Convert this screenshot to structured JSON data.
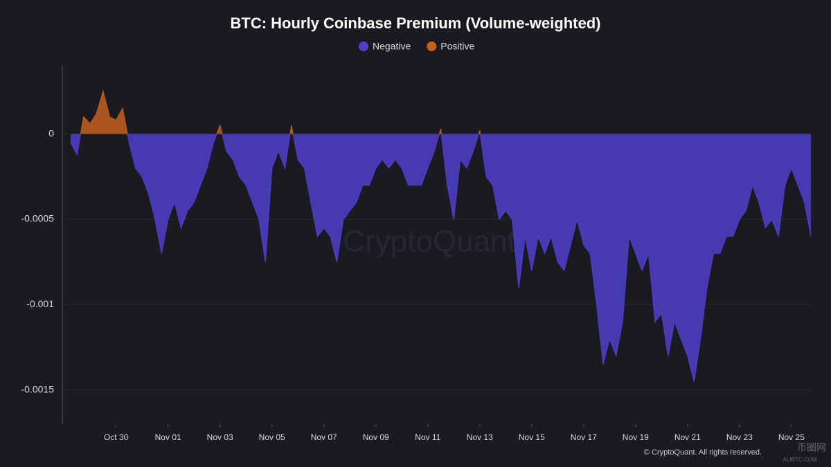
{
  "chart_data": {
    "type": "area",
    "title": "BTC: Hourly Coinbase Premium (Volume-weighted)",
    "legend": [
      {
        "name": "Negative",
        "color": "#4f3fc8"
      },
      {
        "name": "Positive",
        "color": "#c45f1c"
      }
    ],
    "watermark": "CryptoQuant",
    "copyright": "© CryptoQuant. All rights reserved.",
    "corner_logo": [
      "币圈网",
      "ALIBTC.COM"
    ],
    "xlim": [
      0.25,
      28.75
    ],
    "xticks": [
      {
        "value": 2,
        "label": "Oct 30"
      },
      {
        "value": 4,
        "label": "Nov 01"
      },
      {
        "value": 6,
        "label": "Nov 03"
      },
      {
        "value": 8,
        "label": "Nov 05"
      },
      {
        "value": 10,
        "label": "Nov 07"
      },
      {
        "value": 12,
        "label": "Nov 09"
      },
      {
        "value": 14,
        "label": "Nov 11"
      },
      {
        "value": 16,
        "label": "Nov 13"
      },
      {
        "value": 18,
        "label": "Nov 15"
      },
      {
        "value": 20,
        "label": "Nov 17"
      },
      {
        "value": 22,
        "label": "Nov 19"
      },
      {
        "value": 24,
        "label": "Nov 21"
      },
      {
        "value": 26,
        "label": "Nov 23"
      },
      {
        "value": 28,
        "label": "Nov 25"
      }
    ],
    "ylim": [
      -0.0017,
      0.0004
    ],
    "yticks": [
      0,
      -0.0005,
      -0.001,
      -0.0015
    ],
    "grid": true,
    "x": [
      0.25,
      0.5,
      0.75,
      1,
      1.25,
      1.5,
      1.75,
      2,
      2.25,
      2.5,
      2.75,
      3,
      3.25,
      3.5,
      3.75,
      4,
      4.25,
      4.5,
      4.75,
      5,
      5.25,
      5.5,
      5.75,
      6,
      6.25,
      6.5,
      6.75,
      7,
      7.25,
      7.5,
      7.75,
      8,
      8.25,
      8.5,
      8.75,
      9,
      9.25,
      9.5,
      9.75,
      10,
      10.25,
      10.5,
      10.75,
      11,
      11.25,
      11.5,
      11.75,
      12,
      12.25,
      12.5,
      12.75,
      13,
      13.25,
      13.5,
      13.75,
      14,
      14.25,
      14.5,
      14.75,
      15,
      15.25,
      15.5,
      15.75,
      16,
      16.25,
      16.5,
      16.75,
      17,
      17.25,
      17.5,
      17.75,
      18,
      18.25,
      18.5,
      18.75,
      19,
      19.25,
      19.5,
      19.75,
      20,
      20.25,
      20.5,
      20.75,
      21,
      21.25,
      21.5,
      21.75,
      22,
      22.25,
      22.5,
      22.75,
      23,
      23.25,
      23.5,
      23.75,
      24,
      24.25,
      24.5,
      24.75,
      25,
      25.25,
      25.5,
      25.75,
      26,
      26.25,
      26.5,
      26.75,
      27,
      27.25,
      27.5,
      27.75,
      28,
      28.25,
      28.5,
      28.75
    ],
    "values": [
      -5e-05,
      -0.00012,
      0.0001,
      6e-05,
      0.00012,
      0.00025,
      0.0001,
      8e-05,
      0.00015,
      -5e-05,
      -0.0002,
      -0.00025,
      -0.00035,
      -0.0005,
      -0.0007,
      -0.0005,
      -0.0004,
      -0.00055,
      -0.00045,
      -0.0004,
      -0.0003,
      -0.0002,
      -5e-05,
      5e-05,
      -0.0001,
      -0.00015,
      -0.00025,
      -0.0003,
      -0.0004,
      -0.0005,
      -0.00075,
      -0.0002,
      -0.0001,
      -0.0002,
      5e-05,
      -0.00015,
      -0.0002,
      -0.0004,
      -0.0006,
      -0.00055,
      -0.0006,
      -0.00075,
      -0.0005,
      -0.00045,
      -0.0004,
      -0.0003,
      -0.0003,
      -0.0002,
      -0.00015,
      -0.0002,
      -0.00015,
      -0.0002,
      -0.0003,
      -0.0003,
      -0.0003,
      -0.0002,
      -0.0001,
      3e-05,
      -0.0003,
      -0.0005,
      -0.00015,
      -0.0002,
      -0.0001,
      2e-05,
      -0.00025,
      -0.0003,
      -0.0005,
      -0.00045,
      -0.0005,
      -0.0009,
      -0.0006,
      -0.0008,
      -0.0006,
      -0.0007,
      -0.0006,
      -0.00075,
      -0.0008,
      -0.00065,
      -0.0005,
      -0.00065,
      -0.0007,
      -0.001,
      -0.00135,
      -0.0012,
      -0.0013,
      -0.0011,
      -0.0006,
      -0.0007,
      -0.0008,
      -0.0007,
      -0.0011,
      -0.00105,
      -0.0013,
      -0.0011,
      -0.0012,
      -0.0013,
      -0.00145,
      -0.0012,
      -0.0009,
      -0.0007,
      -0.0007,
      -0.0006,
      -0.0006,
      -0.0005,
      -0.00045,
      -0.0003,
      -0.0004,
      -0.00055,
      -0.0005,
      -0.0006,
      -0.0003,
      -0.0002,
      -0.0003,
      -0.0004,
      -0.0006
    ]
  }
}
